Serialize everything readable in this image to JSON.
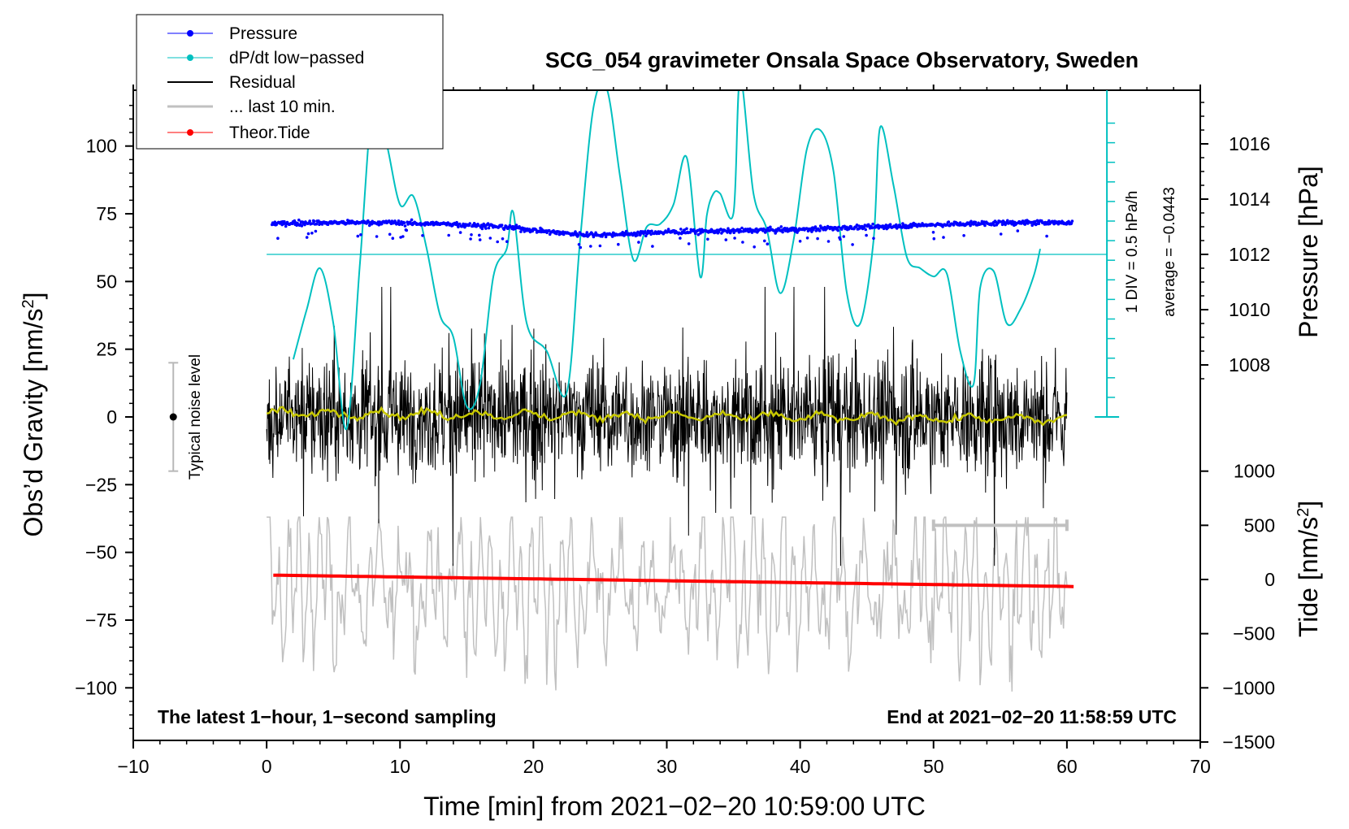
{
  "chart_data": {
    "type": "line",
    "title": "SCG_054 gravimeter Onsala Space Observatory, Sweden",
    "xlabel": "Time [min] from 2021−02−20 10:59:00 UTC",
    "ylabel_left": "Obs’d Gravity [nm/s",
    "ylabel_left_sup": "2",
    "ylabel_left_end": "]",
    "ylabel_right_top": "Pressure [hPa]",
    "ylabel_right_bottom": "Tide [nm/s",
    "ylabel_right_bottom_sup": "2",
    "ylabel_right_bottom_end": "]",
    "xlim": [
      -10,
      70
    ],
    "ylim_left": [
      -120,
      120
    ],
    "x_ticks": [
      {
        "v": -10,
        "label": "−10"
      },
      {
        "v": 0,
        "label": "0"
      },
      {
        "v": 10,
        "label": "10"
      },
      {
        "v": 20,
        "label": "20"
      },
      {
        "v": 30,
        "label": "30"
      },
      {
        "v": 40,
        "label": "40"
      },
      {
        "v": 50,
        "label": "50"
      },
      {
        "v": 60,
        "label": "60"
      },
      {
        "v": 70,
        "label": "70"
      }
    ],
    "left_ticks": [
      {
        "v": 100,
        "label": "100"
      },
      {
        "v": 75,
        "label": "75"
      },
      {
        "v": 50,
        "label": "50"
      },
      {
        "v": 25,
        "label": "25"
      },
      {
        "v": 0,
        "label": "0"
      },
      {
        "v": -25,
        "label": "−25"
      },
      {
        "v": -50,
        "label": "−50"
      },
      {
        "v": -75,
        "label": "−75"
      },
      {
        "v": -100,
        "label": "−100"
      }
    ],
    "pressure_ticks": [
      {
        "v": 1016,
        "label": "1016"
      },
      {
        "v": 1014,
        "label": "1014"
      },
      {
        "v": 1012,
        "label": "1012"
      },
      {
        "v": 1010,
        "label": "1010"
      },
      {
        "v": 1008,
        "label": "1008"
      }
    ],
    "tide_ticks": [
      {
        "v": 1000,
        "label": "1000"
      },
      {
        "v": 500,
        "label": "500"
      },
      {
        "v": 0,
        "label": "0"
      },
      {
        "v": -500,
        "label": "−500"
      },
      {
        "v": -1000,
        "label": "−1000"
      },
      {
        "v": -1500,
        "label": "−1500"
      }
    ],
    "legend": [
      {
        "label": "Pressure",
        "color": "#0000ff",
        "marker": true
      },
      {
        "label": "dP/dt low−passed",
        "color": "#00c0c0",
        "marker": true
      },
      {
        "label": "Residual",
        "color": "#000000",
        "marker": false
      },
      {
        "label": "... last 10 min.",
        "color": "#c0c0c0",
        "marker": false
      },
      {
        "label": "Theor.Tide",
        "color": "#ff0000",
        "marker": true
      }
    ],
    "legend_position": "top-left",
    "annotations": {
      "left_bottom": "The latest 1−hour, 1−second sampling",
      "right_bottom": "End at 2021−02−20 11:58:59 UTC",
      "noise": "Typical noise level",
      "div": "1 DIV = 0.5 hPa/h",
      "average": "average = −0.0443"
    },
    "colors": {
      "pressure": "#0000ff",
      "dpdt": "#00c0c0",
      "residual": "#000000",
      "residual_smooth": "#c8c800",
      "last10": "#c0c0c0",
      "tide": "#ff0000"
    },
    "pressure_level_hPa": 1013.0,
    "dpdt_zero_hPa": 1012,
    "dpdt_unit_per_div": 0.5,
    "dpdt_series": {
      "x": [
        2,
        3,
        4,
        5,
        6,
        7,
        8,
        9,
        10,
        11,
        12,
        13,
        14,
        15,
        16,
        17,
        18,
        18.5,
        19.5,
        21,
        22.5,
        23.5,
        24.5,
        25.5,
        26.5,
        27.5,
        28.5,
        29.5,
        30.5,
        31.5,
        32.5,
        33,
        33.5,
        34,
        35,
        35.5,
        36.5,
        37.5,
        38.5,
        39.5,
        40.5,
        41.5,
        42.5,
        43.5,
        44.5,
        45.5,
        46,
        47,
        48,
        49,
        50,
        51,
        52,
        53,
        53.5,
        54.5,
        55.5,
        56.5,
        57.5,
        58
      ],
      "y": [
        1008.2,
        1010,
        1011.5,
        1009.5,
        1005.7,
        1011.7,
        1017.7,
        1016,
        1013.8,
        1014.1,
        1012.2,
        1009.8,
        1009,
        1006.5,
        1007.3,
        1011.2,
        1012.2,
        1013.5,
        1009.5,
        1008.5,
        1007,
        1012.5,
        1017.3,
        1018,
        1014.8,
        1011.8,
        1013,
        1013.1,
        1013.8,
        1015.5,
        1011.2,
        1013.4,
        1014.2,
        1014.2,
        1013.5,
        1018.4,
        1014.2,
        1012.9,
        1010.6,
        1012.5,
        1015.8,
        1016.5,
        1015,
        1010.6,
        1009.5,
        1012.5,
        1016.6,
        1014.5,
        1011.9,
        1011.5,
        1011.2,
        1011.3,
        1008.5,
        1007.3,
        1010.8,
        1011.4,
        1009.5,
        1010,
        1011.2,
        1012.2
      ]
    },
    "tide_series": {
      "x": [
        0.5,
        60.5
      ],
      "y": [
        40,
        -65
      ]
    }
  }
}
